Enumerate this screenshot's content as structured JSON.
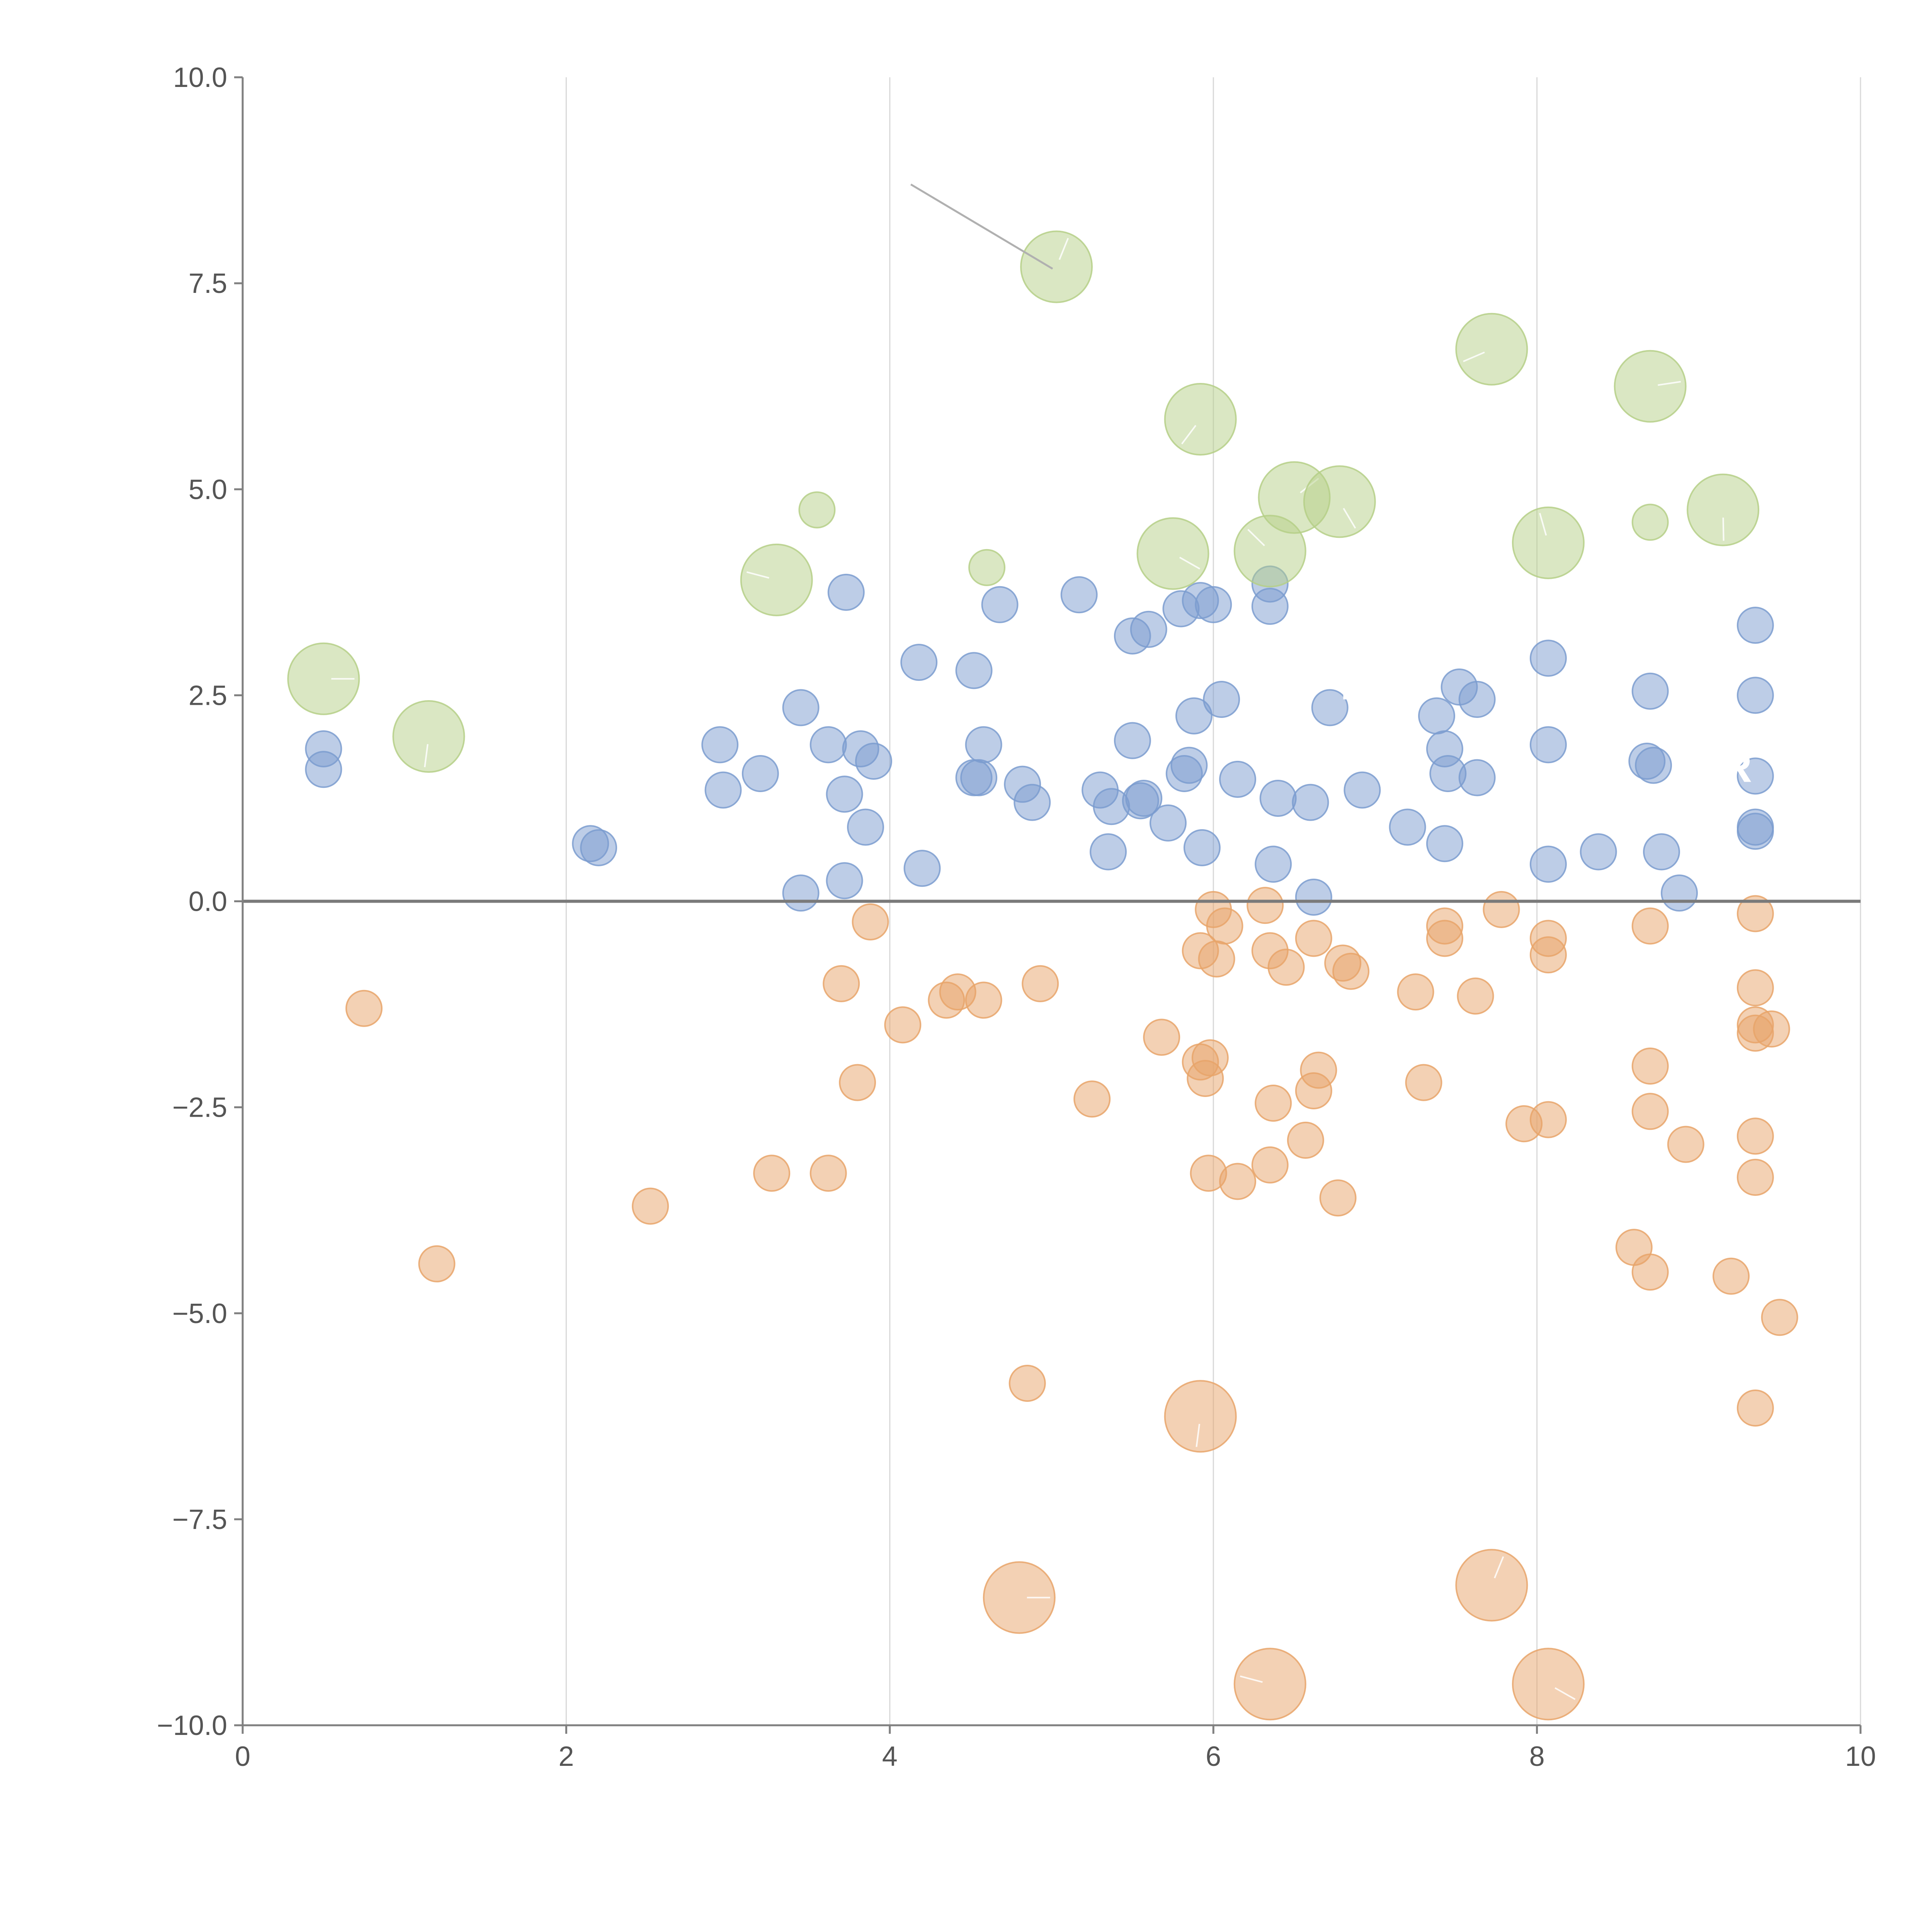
{
  "colors": {
    "blue": "#7b9ccf",
    "orange": "#e8a46a",
    "green": "#b5cf87",
    "axis": "#808080",
    "grid": "#d8d8d8",
    "tick_text": "#555555"
  },
  "chart_data": {
    "type": "scatter",
    "title": "",
    "xlabel": "",
    "ylabel": "",
    "xlim": [
      0,
      10
    ],
    "ylim": [
      -10,
      10
    ],
    "xticks": [
      "0",
      "2",
      "4",
      "6",
      "8",
      "10"
    ],
    "yticks": [
      "10.0",
      "7.5",
      "5.0",
      "2.5",
      "0.0",
      "−2.5",
      "−5.0",
      "−7.5",
      "−10.0"
    ],
    "xtick_values": [
      0,
      2,
      4,
      6,
      8,
      10
    ],
    "ytick_values": [
      10,
      7.5,
      5,
      2.5,
      0,
      -2.5,
      -5,
      -7.5,
      -10
    ],
    "grid": "vertical",
    "reference_line_y": 0,
    "stray_labels": [
      "C",
      "T",
      "AR"
    ],
    "series": [
      {
        "name": "positive",
        "color": "blue",
        "size": "small",
        "points": [
          [
            0.5,
            1.85
          ],
          [
            0.5,
            1.6
          ],
          [
            2.15,
            0.7
          ],
          [
            2.2,
            0.65
          ],
          [
            2.95,
            1.9
          ],
          [
            2.97,
            1.35
          ],
          [
            3.2,
            1.55
          ],
          [
            3.45,
            2.35
          ],
          [
            3.45,
            0.1
          ],
          [
            3.62,
            1.9
          ],
          [
            3.72,
            1.3
          ],
          [
            3.72,
            0.25
          ],
          [
            3.73,
            3.75
          ],
          [
            3.82,
            1.85
          ],
          [
            3.85,
            0.9
          ],
          [
            3.9,
            1.7
          ],
          [
            4.18,
            2.9
          ],
          [
            4.2,
            0.4
          ],
          [
            4.52,
            2.8
          ],
          [
            4.52,
            1.5
          ],
          [
            4.55,
            1.5
          ],
          [
            4.58,
            1.9
          ],
          [
            4.68,
            3.6
          ],
          [
            4.82,
            1.42
          ],
          [
            4.88,
            1.2
          ],
          [
            5.17,
            3.72
          ],
          [
            5.3,
            1.35
          ],
          [
            5.35,
            0.6
          ],
          [
            5.37,
            1.15
          ],
          [
            5.5,
            1.95
          ],
          [
            5.5,
            3.22
          ],
          [
            5.55,
            1.22
          ],
          [
            5.57,
            1.25
          ],
          [
            5.6,
            3.3
          ],
          [
            5.72,
            0.95
          ],
          [
            5.8,
            3.55
          ],
          [
            5.82,
            1.55
          ],
          [
            5.85,
            1.65
          ],
          [
            5.88,
            2.25
          ],
          [
            5.92,
            3.65
          ],
          [
            5.93,
            0.65
          ],
          [
            6.0,
            3.6
          ],
          [
            6.05,
            2.45
          ],
          [
            6.15,
            1.48
          ],
          [
            6.35,
            3.85
          ],
          [
            6.35,
            3.58
          ],
          [
            6.37,
            0.45
          ],
          [
            6.4,
            1.25
          ],
          [
            6.6,
            1.2
          ],
          [
            6.62,
            0.05
          ],
          [
            6.72,
            2.35
          ],
          [
            6.92,
            1.35
          ],
          [
            7.2,
            0.9
          ],
          [
            7.38,
            2.25
          ],
          [
            7.43,
            1.85
          ],
          [
            7.43,
            0.7
          ],
          [
            7.45,
            1.55
          ],
          [
            7.52,
            2.6
          ],
          [
            7.63,
            2.45
          ],
          [
            7.63,
            1.5
          ],
          [
            8.07,
            2.95
          ],
          [
            8.07,
            1.9
          ],
          [
            8.07,
            0.45
          ],
          [
            8.38,
            0.6
          ],
          [
            8.68,
            1.7
          ],
          [
            8.7,
            2.55
          ],
          [
            8.72,
            1.65
          ],
          [
            8.77,
            0.6
          ],
          [
            8.88,
            0.1
          ],
          [
            9.35,
            3.35
          ],
          [
            9.35,
            2.5
          ],
          [
            9.35,
            1.52
          ],
          [
            9.35,
            0.9
          ],
          [
            9.35,
            0.85
          ]
        ]
      },
      {
        "name": "negative",
        "color": "orange",
        "size": "small",
        "points": [
          [
            0.75,
            -1.3
          ],
          [
            1.2,
            -4.4
          ],
          [
            2.52,
            -3.7
          ],
          [
            3.27,
            -3.3
          ],
          [
            3.62,
            -3.3
          ],
          [
            3.7,
            -1.0
          ],
          [
            3.8,
            -2.2
          ],
          [
            3.88,
            -0.25
          ],
          [
            4.08,
            -1.5
          ],
          [
            4.35,
            -1.2
          ],
          [
            4.42,
            -1.1
          ],
          [
            4.58,
            -1.2
          ],
          [
            4.85,
            -5.85
          ],
          [
            4.93,
            -1.0
          ],
          [
            5.25,
            -2.4
          ],
          [
            5.68,
            -1.65
          ],
          [
            5.92,
            -1.95
          ],
          [
            5.92,
            -0.6
          ],
          [
            5.95,
            -2.15
          ],
          [
            5.97,
            -3.3
          ],
          [
            5.98,
            -1.9
          ],
          [
            6.0,
            -0.1
          ],
          [
            6.02,
            -0.7
          ],
          [
            6.07,
            -0.3
          ],
          [
            6.15,
            -3.4
          ],
          [
            6.32,
            -0.05
          ],
          [
            6.35,
            -0.6
          ],
          [
            6.35,
            -3.2
          ],
          [
            6.37,
            -2.45
          ],
          [
            6.45,
            -0.8
          ],
          [
            6.57,
            -2.9
          ],
          [
            6.62,
            -0.45
          ],
          [
            6.62,
            -2.3
          ],
          [
            6.65,
            -2.05
          ],
          [
            6.77,
            -3.6
          ],
          [
            6.8,
            -0.75
          ],
          [
            6.85,
            -0.85
          ],
          [
            7.25,
            -1.1
          ],
          [
            7.3,
            -2.2
          ],
          [
            7.43,
            -0.3
          ],
          [
            7.43,
            -0.45
          ],
          [
            7.62,
            -1.15
          ],
          [
            7.78,
            -0.1
          ],
          [
            7.92,
            -2.7
          ],
          [
            8.07,
            -0.45
          ],
          [
            8.07,
            -0.65
          ],
          [
            8.07,
            -2.65
          ],
          [
            8.6,
            -4.2
          ],
          [
            8.7,
            -0.3
          ],
          [
            8.7,
            -2.0
          ],
          [
            8.7,
            -2.55
          ],
          [
            8.7,
            -4.5
          ],
          [
            8.92,
            -2.95
          ],
          [
            9.2,
            -4.55
          ],
          [
            9.35,
            -0.15
          ],
          [
            9.35,
            -1.05
          ],
          [
            9.35,
            -1.5
          ],
          [
            9.35,
            -1.6
          ],
          [
            9.35,
            -2.85
          ],
          [
            9.35,
            -3.35
          ],
          [
            9.35,
            -6.15
          ],
          [
            9.45,
            -1.55
          ],
          [
            9.5,
            -5.05
          ]
        ]
      },
      {
        "name": "negative-large",
        "color": "orange",
        "size": "large",
        "points": [
          [
            4.8,
            -8.45
          ],
          [
            5.92,
            -6.25
          ],
          [
            6.35,
            -9.5
          ],
          [
            7.72,
            -8.3
          ],
          [
            8.07,
            -9.5
          ]
        ]
      },
      {
        "name": "positive-large",
        "color": "green",
        "size": "large",
        "points": [
          [
            0.5,
            2.7
          ],
          [
            1.15,
            2.0
          ],
          [
            3.3,
            3.9
          ],
          [
            5.03,
            7.7
          ],
          [
            5.75,
            4.22
          ],
          [
            5.92,
            5.85
          ],
          [
            6.35,
            4.25
          ],
          [
            6.5,
            4.9
          ],
          [
            6.78,
            4.85
          ],
          [
            7.72,
            6.7
          ],
          [
            8.07,
            4.35
          ],
          [
            8.7,
            6.25
          ],
          [
            9.15,
            4.75
          ]
        ]
      },
      {
        "name": "positive-medium",
        "color": "green",
        "size": "small",
        "points": [
          [
            3.55,
            4.75
          ],
          [
            4.6,
            4.05
          ],
          [
            8.7,
            4.6
          ]
        ]
      }
    ]
  }
}
